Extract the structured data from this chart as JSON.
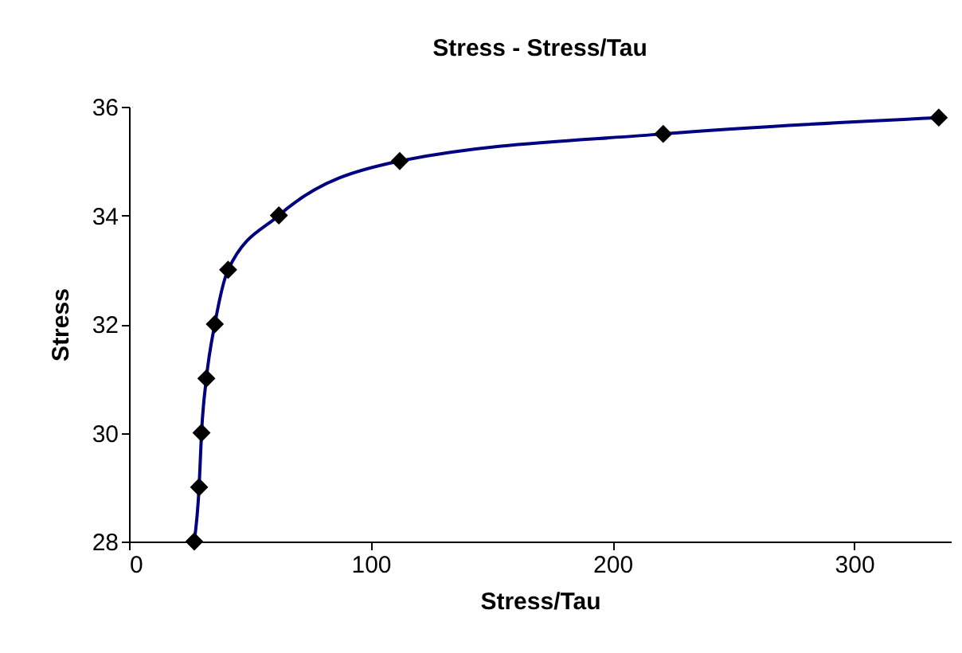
{
  "chart_data": {
    "type": "line",
    "title": "Stress - Stress/Tau",
    "xlabel": "Stress/Tau",
    "ylabel": "Stress",
    "x": [
      27,
      29,
      30,
      32,
      35.5,
      41,
      62,
      112,
      221,
      335
    ],
    "series": [
      {
        "color": "#000080",
        "values": [
          28,
          29,
          30,
          31,
          32,
          33,
          34,
          35,
          35.5,
          35.8
        ]
      }
    ],
    "xlim": [
      0,
      340
    ],
    "xticks": [
      0,
      100,
      200,
      300
    ],
    "ylim": [
      28,
      36
    ],
    "yticks": [
      28,
      30,
      32,
      34,
      36
    ],
    "grid": false,
    "marker": "diamond",
    "line_style": "solid"
  }
}
